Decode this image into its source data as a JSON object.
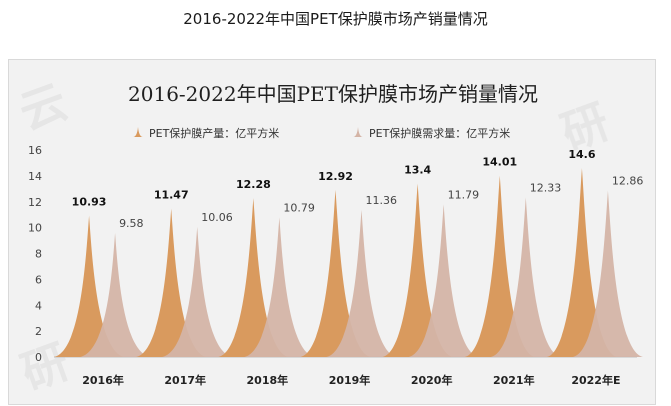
{
  "page_title": "2016-2022年中国PET保护膜市场产销量情况",
  "chart_data": {
    "type": "area",
    "title": "2016-2022年中国PET保护膜市场产销量情况",
    "categories": [
      "2016年",
      "2017年",
      "2018年",
      "2019年",
      "2020年",
      "2021年",
      "2022年E"
    ],
    "series": [
      {
        "name": "PET保护膜产量：亿平方米",
        "color": "#d99a5e",
        "values": [
          10.93,
          11.47,
          12.28,
          12.92,
          13.4,
          14.01,
          14.6
        ]
      },
      {
        "name": "PET保护膜需求量：亿平方米",
        "color": "#d4b4a6",
        "values": [
          9.58,
          10.06,
          10.79,
          11.36,
          11.79,
          12.33,
          12.86
        ]
      }
    ],
    "ylim": [
      0,
      16
    ],
    "yticks": [
      "0",
      "2",
      "4",
      "6",
      "8",
      "10",
      "12",
      "14",
      "16"
    ],
    "legend_position": "top",
    "grid": false
  }
}
